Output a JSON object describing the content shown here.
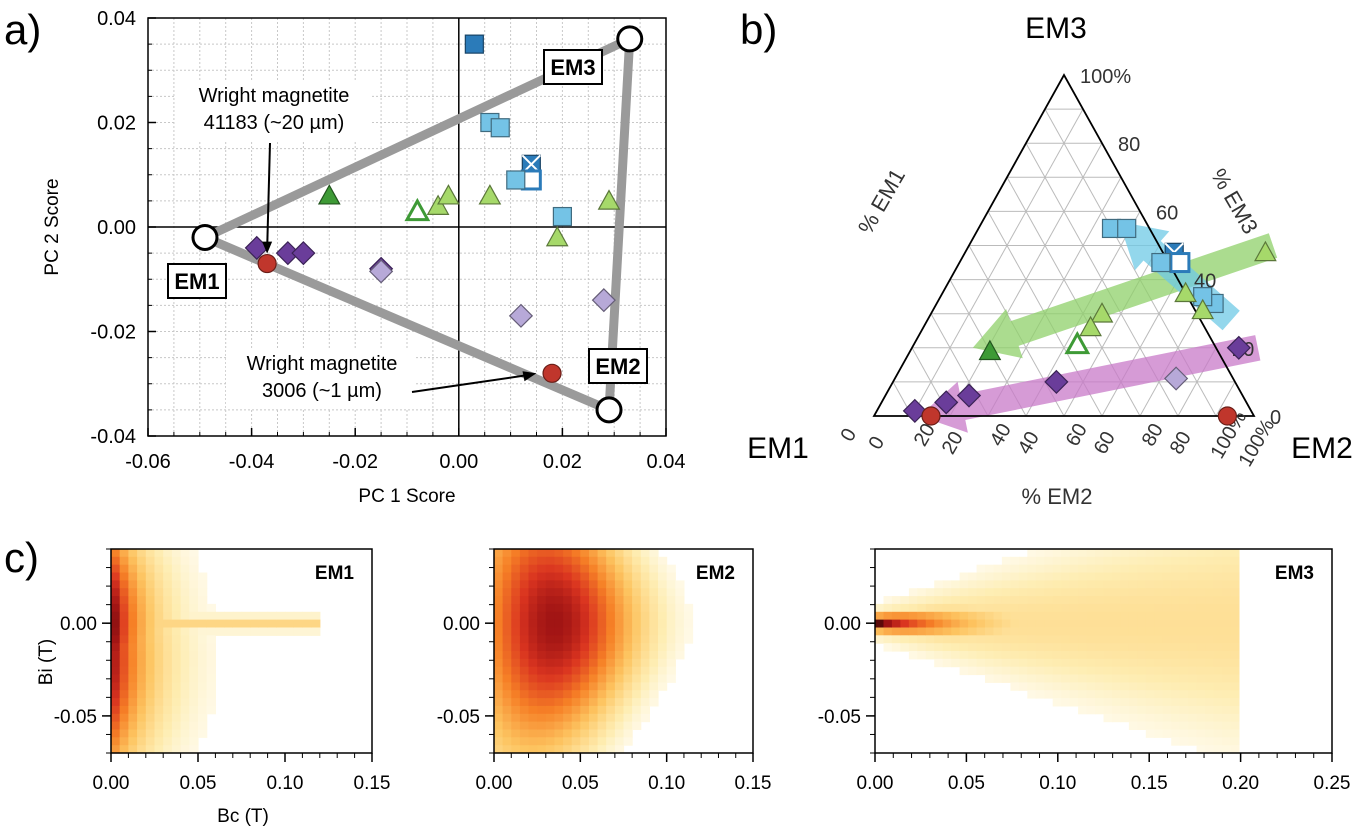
{
  "panel_labels": {
    "a": "a)",
    "b": "b)",
    "c": "c)"
  },
  "colors": {
    "hull": "#9a9a9a",
    "purple_dark": "#6a3d9a",
    "purple_light": "#b7a9d8",
    "blue_dark": "#2b7bb9",
    "blue_light": "#74c3e6",
    "green_dark": "#3e9a36",
    "green_light": "#a6d96a",
    "red": "#c0362c",
    "arrow_purple": "#c879c8",
    "arrow_green": "#8fd06a",
    "arrow_blue": "#6fc9e6"
  },
  "chart_data": [
    {
      "id": "a",
      "type": "scatter",
      "xlabel": "PC 1 Score",
      "ylabel": "PC 2 Score",
      "xlim": [
        -0.06,
        0.04
      ],
      "ylim": [
        -0.04,
        0.04
      ],
      "xticks": [
        "-0.06",
        "-0.04",
        "-0.02",
        "0.00",
        "0.02",
        "0.04"
      ],
      "yticks": [
        "-0.04",
        "-0.02",
        "0.00",
        "0.02",
        "0.04"
      ],
      "grid": true,
      "endmembers": [
        {
          "label": "EM1",
          "x": -0.049,
          "y": -0.002
        },
        {
          "label": "EM2",
          "x": 0.029,
          "y": -0.035
        },
        {
          "label": "EM3",
          "x": 0.033,
          "y": 0.036
        }
      ],
      "points": [
        {
          "x": 0.003,
          "y": 0.035,
          "shape": "square",
          "color": "blue_dark"
        },
        {
          "x": 0.006,
          "y": 0.02,
          "shape": "square",
          "color": "blue_light"
        },
        {
          "x": 0.008,
          "y": 0.019,
          "shape": "square",
          "color": "blue_light"
        },
        {
          "x": 0.014,
          "y": 0.012,
          "shape": "square-x",
          "color": "blue_dark"
        },
        {
          "x": 0.014,
          "y": 0.009,
          "shape": "square-open",
          "color": "blue_dark"
        },
        {
          "x": 0.011,
          "y": 0.009,
          "shape": "square",
          "color": "blue_light"
        },
        {
          "x": 0.02,
          "y": 0.002,
          "shape": "square",
          "color": "blue_light"
        },
        {
          "x": -0.025,
          "y": 0.006,
          "shape": "triangle",
          "color": "green_dark"
        },
        {
          "x": -0.008,
          "y": 0.003,
          "shape": "triangle-open",
          "color": "green_dark"
        },
        {
          "x": -0.004,
          "y": 0.004,
          "shape": "triangle",
          "color": "green_light"
        },
        {
          "x": -0.002,
          "y": 0.006,
          "shape": "triangle",
          "color": "green_light"
        },
        {
          "x": 0.006,
          "y": 0.006,
          "shape": "triangle",
          "color": "green_light"
        },
        {
          "x": 0.019,
          "y": -0.002,
          "shape": "triangle",
          "color": "green_light"
        },
        {
          "x": 0.029,
          "y": 0.005,
          "shape": "triangle",
          "color": "green_light"
        },
        {
          "x": -0.039,
          "y": -0.004,
          "shape": "diamond",
          "color": "purple_dark"
        },
        {
          "x": -0.033,
          "y": -0.005,
          "shape": "diamond",
          "color": "purple_dark"
        },
        {
          "x": -0.03,
          "y": -0.005,
          "shape": "diamond",
          "color": "purple_dark"
        },
        {
          "x": -0.015,
          "y": -0.008,
          "shape": "diamond",
          "color": "purple_dark"
        },
        {
          "x": -0.015,
          "y": -0.0085,
          "shape": "diamond",
          "color": "purple_light"
        },
        {
          "x": 0.012,
          "y": -0.017,
          "shape": "diamond",
          "color": "purple_light"
        },
        {
          "x": 0.028,
          "y": -0.014,
          "shape": "diamond",
          "color": "purple_light"
        },
        {
          "x": -0.037,
          "y": -0.007,
          "shape": "circle",
          "color": "red"
        },
        {
          "x": 0.018,
          "y": -0.028,
          "shape": "circle",
          "color": "red"
        }
      ],
      "annotations": [
        {
          "lines": [
            "Wright magnetite",
            "41183 (~20 µm)"
          ],
          "target_x": -0.037,
          "target_y": -0.007
        },
        {
          "lines": [
            "Wright magnetite",
            "3006 (~1 µm)"
          ],
          "target_x": 0.015,
          "target_y": -0.028
        }
      ]
    },
    {
      "id": "b",
      "type": "ternary",
      "vertices": {
        "left": "EM1",
        "right": "EM2",
        "top": "EM3"
      },
      "axis_titles": {
        "left_edge": "% EM1",
        "right_edge": "% EM3",
        "bottom_edge": "% EM2"
      },
      "em1_ticks": [
        "100%",
        "80",
        "60",
        "40",
        "20",
        "0"
      ],
      "em2_ticks": [
        "0",
        "20",
        "40",
        "60",
        "80",
        "100%"
      ],
      "em3_ticks": [
        "0",
        "20",
        "40",
        "60",
        "80",
        "100%"
      ],
      "points": [
        {
          "em2": 0.35,
          "em3": 0.55,
          "shape": "square",
          "color": "blue_light"
        },
        {
          "em2": 0.39,
          "em3": 0.55,
          "shape": "square",
          "color": "blue_light"
        },
        {
          "em2": 0.55,
          "em3": 0.48,
          "shape": "square-x",
          "color": "blue_dark"
        },
        {
          "em2": 0.58,
          "em3": 0.45,
          "shape": "square-open",
          "color": "blue_dark"
        },
        {
          "em2": 0.53,
          "em3": 0.45,
          "shape": "square",
          "color": "blue_light"
        },
        {
          "em2": 0.73,
          "em3": 0.33,
          "shape": "square",
          "color": "blue_light"
        },
        {
          "em2": 0.69,
          "em3": 0.35,
          "shape": "square",
          "color": "blue_light"
        },
        {
          "em2": 0.79,
          "em3": 0.48,
          "shape": "triangle",
          "color": "green_light"
        },
        {
          "em2": 0.64,
          "em3": 0.36,
          "shape": "triangle",
          "color": "green_light"
        },
        {
          "em2": 0.71,
          "em3": 0.31,
          "shape": "triangle",
          "color": "green_light"
        },
        {
          "em2": 0.45,
          "em3": 0.3,
          "shape": "triangle",
          "color": "green_light"
        },
        {
          "em2": 0.44,
          "em3": 0.26,
          "shape": "triangle",
          "color": "green_light"
        },
        {
          "em2": 0.43,
          "em3": 0.21,
          "shape": "triangle-open",
          "color": "green_dark"
        },
        {
          "em2": 0.21,
          "em3": 0.19,
          "shape": "triangle",
          "color": "green_dark"
        },
        {
          "em2": 0.86,
          "em3": 0.2,
          "shape": "diamond",
          "color": "purple_dark"
        },
        {
          "em2": 0.74,
          "em3": 0.11,
          "shape": "diamond",
          "color": "purple_light"
        },
        {
          "em2": 0.43,
          "em3": 0.1,
          "shape": "diamond",
          "color": "purple_dark"
        },
        {
          "em2": 0.22,
          "em3": 0.06,
          "shape": "diamond",
          "color": "purple_dark"
        },
        {
          "em2": 0.17,
          "em3": 0.04,
          "shape": "diamond",
          "color": "purple_dark"
        },
        {
          "em2": 0.1,
          "em3": 0.015,
          "shape": "diamond",
          "color": "purple_dark"
        },
        {
          "em2": 0.15,
          "em3": 0.0,
          "shape": "circle",
          "color": "red"
        },
        {
          "em2": 0.93,
          "em3": 0.0,
          "shape": "circle",
          "color": "red"
        }
      ],
      "trend_arrows": [
        {
          "color": "arrow_purple",
          "from": {
            "em2": 0.91,
            "em3": 0.2
          },
          "to": {
            "em2": 0.12,
            "em3": 0.0
          }
        },
        {
          "color": "arrow_green",
          "from": {
            "em2": 0.8,
            "em3": 0.5
          },
          "to": {
            "em2": 0.16,
            "em3": 0.2
          }
        },
        {
          "color": "arrow_blue",
          "from": {
            "em2": 0.8,
            "em3": 0.28
          },
          "to": {
            "em2": 0.36,
            "em3": 0.57
          }
        }
      ]
    },
    {
      "id": "c1",
      "type": "heatmap",
      "title": "EM1",
      "xlabel": "Bc (T)",
      "ylabel": "Bi (T)",
      "xlim": [
        0,
        0.15
      ],
      "ylim": [
        -0.07,
        0.04
      ],
      "xticks": [
        "0.00",
        "0.05",
        "0.10",
        "0.15"
      ],
      "yticks": [
        "0.00",
        "-0.05"
      ],
      "peak_bc": 0.0,
      "peak_bi": 0.0
    },
    {
      "id": "c2",
      "type": "heatmap",
      "title": "EM2",
      "xlim": [
        0,
        0.15
      ],
      "ylim": [
        -0.07,
        0.04
      ],
      "xticks": [
        "0.00",
        "0.05",
        "0.10",
        "0.15"
      ],
      "yticks": [
        "0.00",
        "-0.05"
      ],
      "peak_bc": 0.04,
      "peak_bi": 0.0
    },
    {
      "id": "c3",
      "type": "heatmap",
      "title": "EM3",
      "xlim": [
        0,
        0.25
      ],
      "ylim": [
        -0.07,
        0.04
      ],
      "xticks": [
        "0.00",
        "0.05",
        "0.10",
        "0.15",
        "0.20",
        "0.25"
      ],
      "yticks": [
        "0.00",
        "-0.05"
      ],
      "peak_bc": 0.01,
      "peak_bi": 0.0
    }
  ]
}
